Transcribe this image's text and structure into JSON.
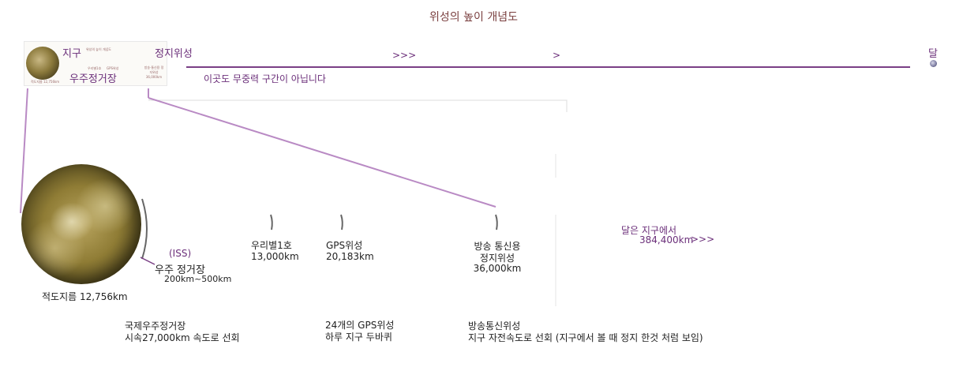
{
  "title": "위성의 높이 개념도",
  "thumbnail": {
    "label_title": "위성의 높이 개념도",
    "label_a": "우리별1호",
    "label_b": "GPS위성",
    "label_c": "적도지름 12,756km",
    "label_d": "방송·통신용 정지위성 36,000km"
  },
  "top": {
    "earth_label": "지구",
    "space_station_label": "우주정거장",
    "geo_label": "정지위성",
    "arrows_1": ">>>",
    "arrows_2": ">",
    "not_zero_g": "이곳도 무중력 구간이 아닙니다",
    "moon_label": "달"
  },
  "detail": {
    "iss_abbr": "(ISS)",
    "iss_name": "우주 정거장",
    "iss_range": "200km~500km",
    "earth_diameter": "적도지름 12,756km",
    "woori_name": "우리별1호",
    "woori_alt": "13,000km",
    "gps_name": "GPS위성",
    "gps_alt": "20,183km",
    "geo_name_1": "방송 통신용",
    "geo_name_2": "정지위성",
    "geo_alt": "36,000km",
    "moon_dist_label": "달은 지구에서",
    "moon_dist": "384,400km",
    "moon_arrows": ">>>"
  },
  "notes": {
    "iss_1": "국제우주정거장",
    "iss_2": "시속27,000km 속도로 선회",
    "gps_1": "24개의 GPS위성",
    "gps_2": "하루 지구 두바퀴",
    "bc_1": "방송통신위성",
    "bc_2": "지구 자전속도로 선회 (지구에서 볼 때 정지 한것 처럼 보임)"
  },
  "colors": {
    "accent": "#6b2f7a",
    "line": "#b98ac4",
    "title": "#7a3f3f"
  }
}
